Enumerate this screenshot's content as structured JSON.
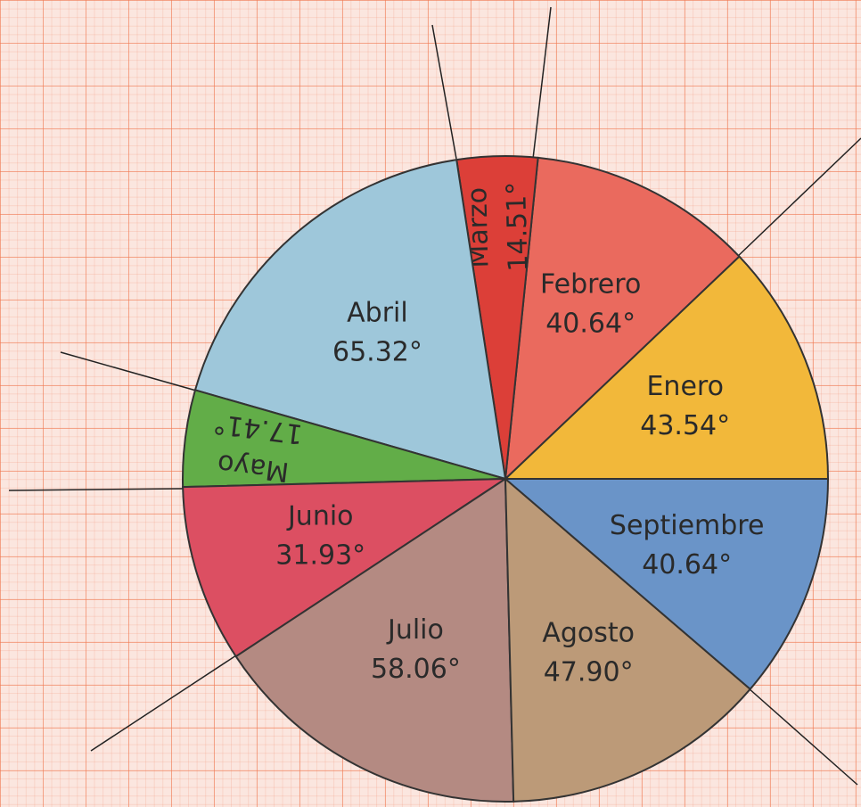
{
  "chart_data": {
    "type": "pie",
    "categories": [
      "Enero",
      "Febrero",
      "Marzo",
      "Abril",
      "Mayo",
      "Junio",
      "Julio",
      "Agosto",
      "Septiembre"
    ],
    "values": [
      43.54,
      40.64,
      14.51,
      65.32,
      17.41,
      31.93,
      58.06,
      47.9,
      40.64
    ],
    "value_labels": [
      "43.54°",
      "40.64°",
      "14.51°",
      "65.32°",
      "17.41°",
      "31.93°",
      "58.06°",
      "47.90°",
      "40.64°"
    ],
    "colors": [
      "#f2b83a",
      "#ea6a5e",
      "#dc3f38",
      "#9ec7da",
      "#62ad48",
      "#dc4f62",
      "#b48a82",
      "#bc9a78",
      "#6a94c8"
    ]
  }
}
